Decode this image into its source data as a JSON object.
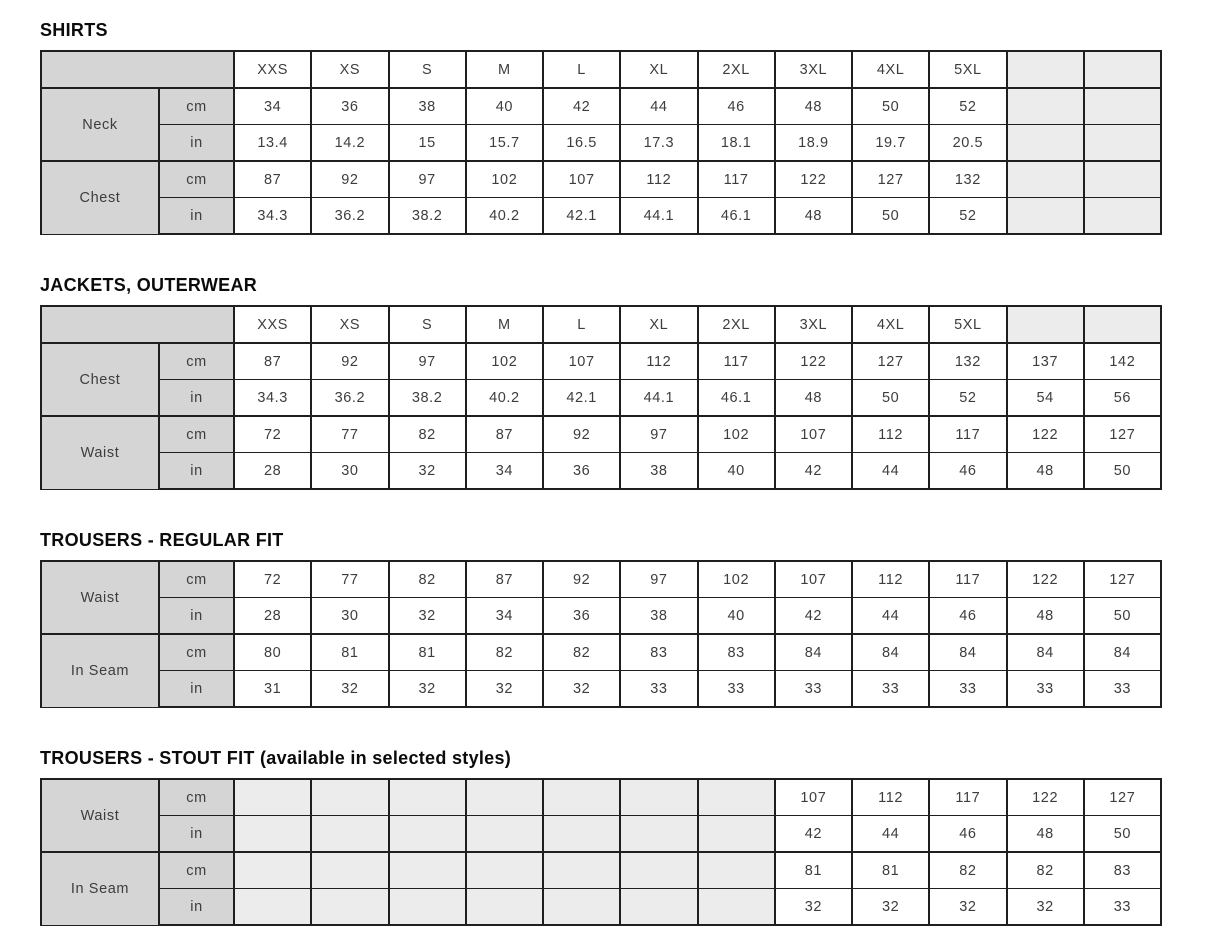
{
  "page": {
    "background": "#ffffff"
  },
  "colors": {
    "page_bg": "#ffffff",
    "border": "#1f1f1f",
    "header_fill": "#d5d5d5",
    "empty_fill": "#ececec",
    "text": "#3d3d3d",
    "title_text": "#0b0b0b"
  },
  "layout": {
    "label_col_width": 118,
    "unit_col_width": 75
  },
  "size_columns": [
    "XXS",
    "XS",
    "S",
    "M",
    "L",
    "XL",
    "2XL",
    "3XL",
    "4XL",
    "5XL",
    "",
    ""
  ],
  "tables": [
    {
      "title": "SHIRTS",
      "note": "",
      "size_header": true,
      "groups": [
        {
          "label": "Neck",
          "rows": [
            {
              "unit": "cm",
              "values": [
                "34",
                "36",
                "38",
                "40",
                "42",
                "44",
                "46",
                "48",
                "50",
                "52",
                "",
                ""
              ]
            },
            {
              "unit": "in",
              "values": [
                "13.4",
                "14.2",
                "15",
                "15.7",
                "16.5",
                "17.3",
                "18.1",
                "18.9",
                "19.7",
                "20.5",
                "",
                ""
              ]
            }
          ]
        },
        {
          "label": "Chest",
          "rows": [
            {
              "unit": "cm",
              "values": [
                "87",
                "92",
                "97",
                "102",
                "107",
                "112",
                "117",
                "122",
                "127",
                "132",
                "",
                ""
              ]
            },
            {
              "unit": "in",
              "values": [
                "34.3",
                "36.2",
                "38.2",
                "40.2",
                "42.1",
                "44.1",
                "46.1",
                "48",
                "50",
                "52",
                "",
                ""
              ]
            }
          ]
        }
      ]
    },
    {
      "title": "JACKETS, OUTERWEAR",
      "note": "",
      "size_header": true,
      "groups": [
        {
          "label": "Chest",
          "rows": [
            {
              "unit": "cm",
              "values": [
                "87",
                "92",
                "97",
                "102",
                "107",
                "112",
                "117",
                "122",
                "127",
                "132",
                "137",
                "142"
              ]
            },
            {
              "unit": "in",
              "values": [
                "34.3",
                "36.2",
                "38.2",
                "40.2",
                "42.1",
                "44.1",
                "46.1",
                "48",
                "50",
                "52",
                "54",
                "56"
              ]
            }
          ]
        },
        {
          "label": "Waist",
          "rows": [
            {
              "unit": "cm",
              "values": [
                "72",
                "77",
                "82",
                "87",
                "92",
                "97",
                "102",
                "107",
                "112",
                "117",
                "122",
                "127"
              ]
            },
            {
              "unit": "in",
              "values": [
                "28",
                "30",
                "32",
                "34",
                "36",
                "38",
                "40",
                "42",
                "44",
                "46",
                "48",
                "50"
              ]
            }
          ]
        }
      ]
    },
    {
      "title": "TROUSERS - REGULAR FIT",
      "note": "",
      "size_header": false,
      "groups": [
        {
          "label": "Waist",
          "rows": [
            {
              "unit": "cm",
              "values": [
                "72",
                "77",
                "82",
                "87",
                "92",
                "97",
                "102",
                "107",
                "112",
                "117",
                "122",
                "127"
              ]
            },
            {
              "unit": "in",
              "values": [
                "28",
                "30",
                "32",
                "34",
                "36",
                "38",
                "40",
                "42",
                "44",
                "46",
                "48",
                "50"
              ]
            }
          ]
        },
        {
          "label": "In Seam",
          "rows": [
            {
              "unit": "cm",
              "values": [
                "80",
                "81",
                "81",
                "82",
                "82",
                "83",
                "83",
                "84",
                "84",
                "84",
                "84",
                "84"
              ]
            },
            {
              "unit": "in",
              "values": [
                "31",
                "32",
                "32",
                "32",
                "32",
                "33",
                "33",
                "33",
                "33",
                "33",
                "33",
                "33"
              ]
            }
          ]
        }
      ]
    },
    {
      "title": "TROUSERS - STOUT FIT",
      "note": " (available in selected styles)",
      "size_header": false,
      "groups": [
        {
          "label": "Waist",
          "rows": [
            {
              "unit": "cm",
              "values": [
                "",
                "",
                "",
                "",
                "",
                "",
                "",
                "107",
                "112",
                "117",
                "122",
                "127"
              ]
            },
            {
              "unit": "in",
              "values": [
                "",
                "",
                "",
                "",
                "",
                "",
                "",
                "42",
                "44",
                "46",
                "48",
                "50"
              ]
            }
          ]
        },
        {
          "label": "In Seam",
          "rows": [
            {
              "unit": "cm",
              "values": [
                "",
                "",
                "",
                "",
                "",
                "",
                "",
                "81",
                "81",
                "82",
                "82",
                "83"
              ]
            },
            {
              "unit": "in",
              "values": [
                "",
                "",
                "",
                "",
                "",
                "",
                "",
                "32",
                "32",
                "32",
                "32",
                "33"
              ]
            }
          ]
        }
      ]
    }
  ]
}
